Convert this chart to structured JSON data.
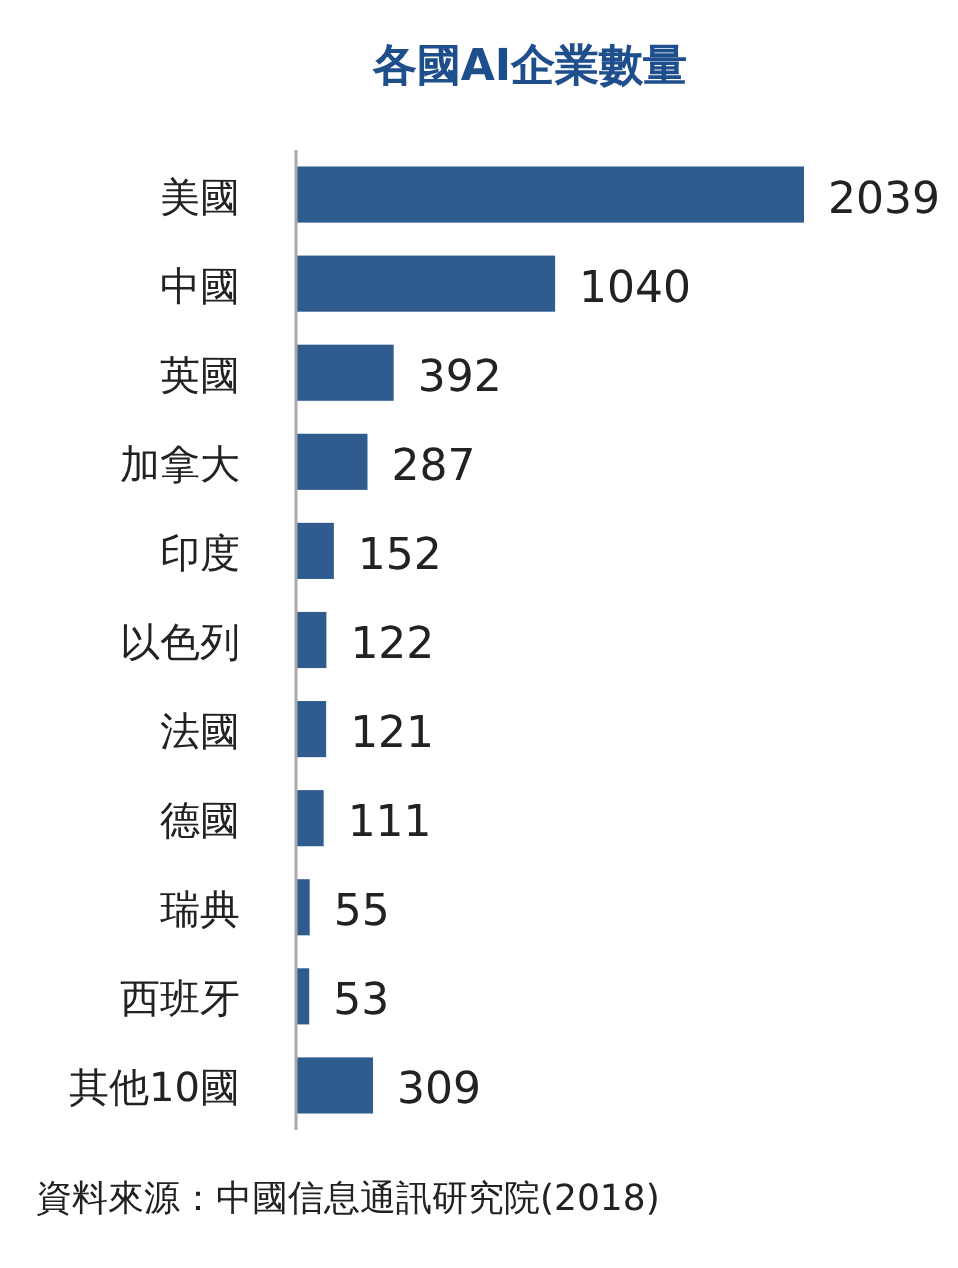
{
  "chart_data": {
    "type": "bar",
    "orientation": "horizontal",
    "title": "各國AI企業數量",
    "categories": [
      "美國",
      "中國",
      "英國",
      "加拿大",
      "印度",
      "以色列",
      "法國",
      "德國",
      "瑞典",
      "西班牙",
      "其他10國"
    ],
    "values": [
      2039,
      1040,
      392,
      287,
      152,
      122,
      121,
      111,
      55,
      53,
      309
    ],
    "color": "#2f5b8f",
    "data_labels": true,
    "annotations": [
      "資料來源：中國信息通訊研究院(2018)"
    ]
  }
}
